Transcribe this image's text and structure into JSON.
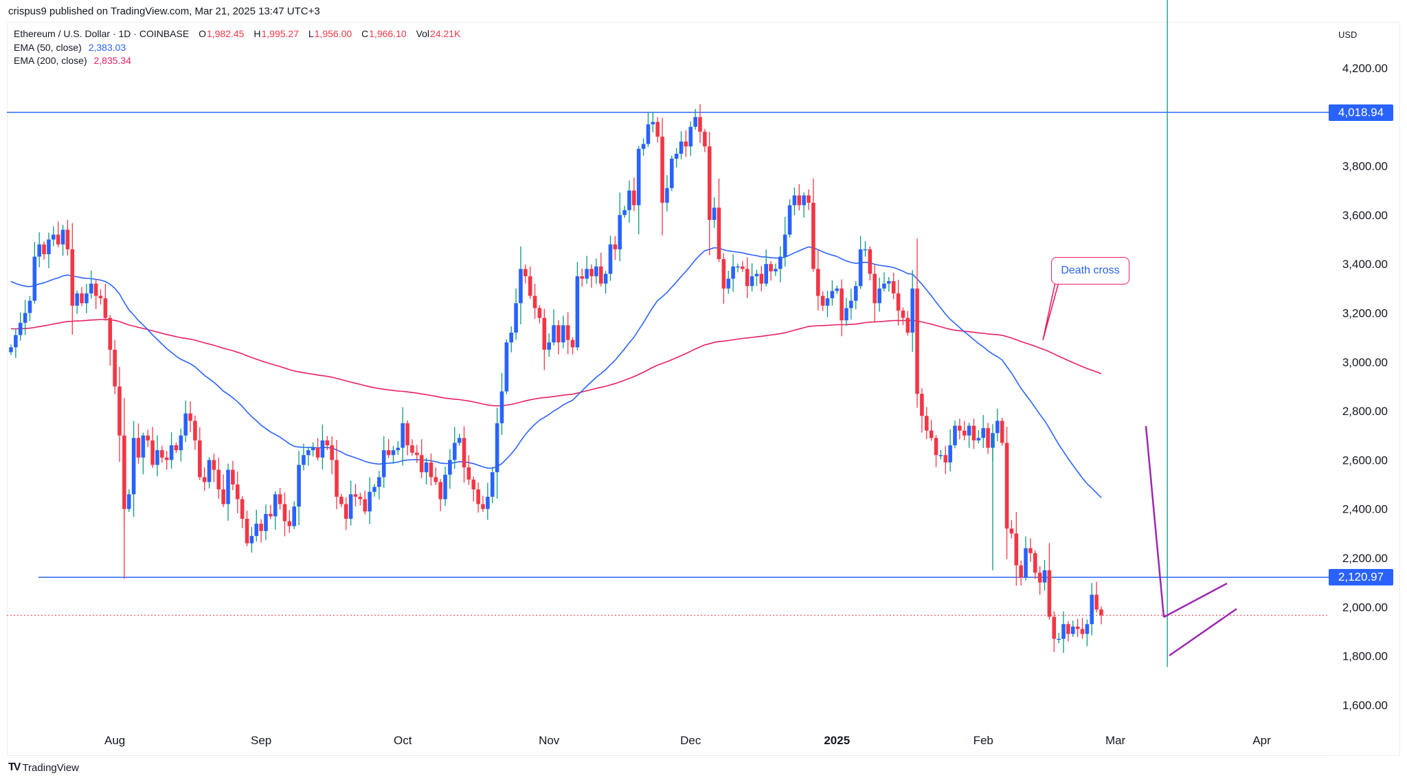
{
  "publisher_line": "crispus9 published on TradingView.com, Mar 21, 2025 13:47 UTC+3",
  "legend": {
    "symbol": "Ethereum / U.S. Dollar · 1D · COINBASE",
    "open_label": "O",
    "open": "1,982.45",
    "high_label": "H",
    "high": "1,995.27",
    "low_label": "L",
    "low": "1,956.00",
    "close_label": "C",
    "close": "1,966.10",
    "vol_label": "Vol",
    "vol": "24.21K",
    "ema50_label": "EMA (50, close)",
    "ema50": "2,383.03",
    "ema200_label": "EMA (200, close)",
    "ema200": "2,835.34"
  },
  "currency": "USD",
  "price_tags": {
    "resistance": "4,018.94",
    "support": "2,120.97"
  },
  "annotation": "Death cross",
  "footer_brand": "TradingView",
  "colors": {
    "up_body": "#2962ff",
    "up_wick": "#089981",
    "down": "#f23645",
    "ema50": "#2962ff",
    "ema200": "#e91e63",
    "level_line": "#2962ff",
    "pattern": "#9c27b0",
    "last_price_line": "#f23645"
  },
  "chart_data": {
    "type": "candlestick",
    "title": "Ethereum / U.S. Dollar · 1D · COINBASE",
    "xlabel": "",
    "ylabel": "USD",
    "ylim": [
      1550,
      4300
    ],
    "y_ticks": [
      "4,200.00",
      "3,800.00",
      "3,600.00",
      "3,400.00",
      "3,200.00",
      "3,000.00",
      "2,800.00",
      "2,600.00",
      "2,400.00",
      "2,200.00",
      "2,000.00",
      "1,800.00",
      "1,600.00"
    ],
    "y_tick_values": [
      4200,
      3800,
      3600,
      3400,
      3200,
      3000,
      2800,
      2600,
      2400,
      2200,
      2000,
      1800,
      1600
    ],
    "x_ticks": [
      "Aug",
      "Sep",
      "Oct",
      "Nov",
      "Dec",
      "2025",
      "Feb",
      "Mar",
      "Apr"
    ],
    "x_tick_dates": [
      "2024-08-01",
      "2024-09-01",
      "2024-10-01",
      "2024-11-01",
      "2024-12-01",
      "2025-01-01",
      "2025-02-01",
      "2025-03-01",
      "2025-04-01"
    ],
    "start_date": "2024-07-10",
    "end_date": "2025-03-21",
    "horizontal_levels": [
      {
        "price": 4018.94,
        "label": "4,018.94"
      },
      {
        "price": 2120.97,
        "label": "2,120.97"
      }
    ],
    "last_price": 1966.1,
    "series": [
      {
        "name": "EMA (50, close)",
        "last": 2383.03
      },
      {
        "name": "EMA (200, close)",
        "last": 2835.34
      }
    ],
    "annotations": [
      {
        "text": "Death cross",
        "date": "2025-02-14",
        "price": 3100
      }
    ],
    "ohlc_close_approx": [
      3060,
      3110,
      3160,
      3200,
      3250,
      3430,
      3480,
      3440,
      3500,
      3520,
      3480,
      3540,
      3460,
      3230,
      3280,
      3240,
      3280,
      3320,
      3270,
      3260,
      3180,
      3050,
      2900,
      2700,
      2400,
      2460,
      2690,
      2610,
      2700,
      2680,
      2580,
      2640,
      2610,
      2600,
      2660,
      2640,
      2700,
      2790,
      2760,
      2680,
      2530,
      2510,
      2600,
      2560,
      2480,
      2420,
      2560,
      2500,
      2440,
      2360,
      2260,
      2290,
      2340,
      2310,
      2380,
      2370,
      2460,
      2420,
      2350,
      2330,
      2410,
      2580,
      2620,
      2640,
      2650,
      2610,
      2680,
      2660,
      2600,
      2450,
      2420,
      2360,
      2460,
      2450,
      2440,
      2390,
      2470,
      2490,
      2530,
      2640,
      2620,
      2640,
      2650,
      2750,
      2660,
      2630,
      2620,
      2550,
      2590,
      2530,
      2510,
      2440,
      2540,
      2600,
      2670,
      2690,
      2570,
      2520,
      2480,
      2420,
      2400,
      2450,
      2550,
      2750,
      2880,
      3080,
      3120,
      3240,
      3380,
      3350,
      3270,
      3220,
      3180,
      3050,
      3080,
      3150,
      3080,
      3150,
      3090,
      3060,
      3350,
      3340,
      3380,
      3350,
      3390,
      3320,
      3360,
      3480,
      3460,
      3600,
      3620,
      3700,
      3640,
      3870,
      3890,
      3970,
      3980,
      3920,
      3650,
      3710,
      3830,
      3850,
      3900,
      3880,
      3960,
      4000,
      3940,
      3880,
      3580,
      3630,
      3420,
      3300,
      3340,
      3390,
      3390,
      3380,
      3310,
      3350,
      3360,
      3320,
      3400,
      3370,
      3380,
      3430,
      3520,
      3640,
      3680,
      3640,
      3680,
      3650,
      3380,
      3270,
      3230,
      3260,
      3290,
      3300,
      3170,
      3220,
      3250,
      3310,
      3460,
      3460,
      3360,
      3240,
      3300,
      3320,
      3330,
      3280,
      3210,
      3180,
      3120,
      3300,
      2870,
      2780,
      2720,
      2690,
      2620,
      2620,
      2590,
      2660,
      2740,
      2720,
      2700,
      2740,
      2680,
      2690,
      2730,
      2650,
      2710,
      2760,
      2670,
      2320,
      2300,
      2170,
      2120,
      2240,
      2220,
      2140,
      2100,
      2150,
      1960,
      1870,
      1870,
      1930,
      1890,
      1920,
      1910,
      1890,
      1930,
      2050,
      1990,
      1966.1
    ]
  }
}
